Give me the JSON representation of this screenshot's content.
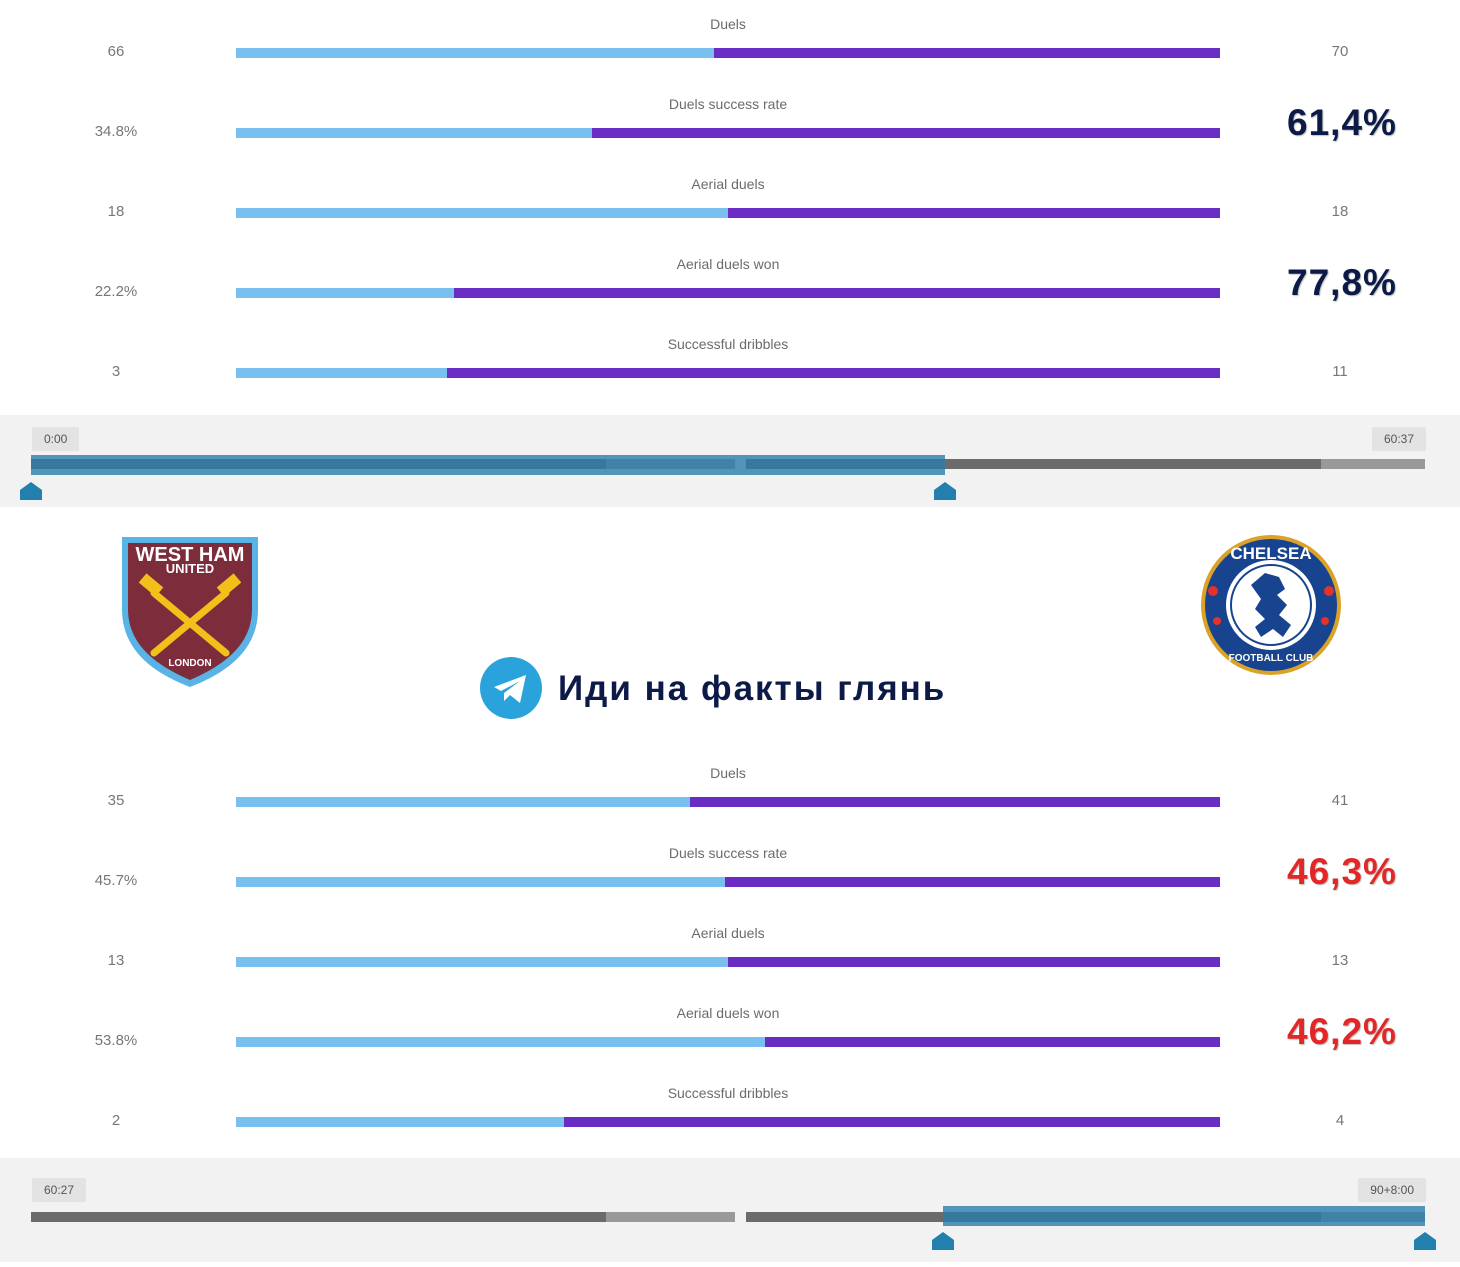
{
  "colors": {
    "home_bar": "#79c0ef",
    "away_bar": "#6a2dc4",
    "highlight_good": "#0c1a47",
    "highlight_bad": "#e32626",
    "timeline_selection": "#2b7daa"
  },
  "top_stats": [
    {
      "label": "Duels",
      "home": "66",
      "away": "70",
      "home_share": 0.486
    },
    {
      "label": "Duels success rate",
      "home": "34.8%",
      "away": "61,4%",
      "home_share": 0.362
    },
    {
      "label": "Aerial duels",
      "home": "18",
      "away": "18",
      "home_share": 0.5
    },
    {
      "label": "Aerial duels won",
      "home": "22.2%",
      "away": "77,8%",
      "home_share": 0.222
    },
    {
      "label": "Successful dribbles",
      "home": "3",
      "away": "11",
      "home_share": 0.214
    }
  ],
  "top_timeline": {
    "start_label": "0:00",
    "end_label": "60:37",
    "selection_start": 0.0,
    "selection_end": 0.656
  },
  "teams": {
    "home": {
      "name": "West Ham United",
      "crest_text_top": "WEST HAM",
      "crest_text_mid": "UNITED",
      "crest_text_bottom": "LONDON",
      "icon": "west-ham-crest"
    },
    "away": {
      "name": "Chelsea Football Club",
      "crest_text_top": "CHELSEA",
      "crest_text_bottom": "FOOTBALL CLUB",
      "icon": "chelsea-crest"
    }
  },
  "promo": {
    "icon": "telegram-icon",
    "text": "Иди на факты глянь"
  },
  "bottom_stats": [
    {
      "label": "Duels",
      "home": "35",
      "away": "41",
      "home_share": 0.461
    },
    {
      "label": "Duels success rate",
      "home": "45.7%",
      "away": "46,3%",
      "home_share": 0.497
    },
    {
      "label": "Aerial duels",
      "home": "13",
      "away": "13",
      "home_share": 0.5
    },
    {
      "label": "Aerial duels won",
      "home": "53.8%",
      "away": "46,2%",
      "home_share": 0.538
    },
    {
      "label": "Successful dribbles",
      "home": "2",
      "away": "4",
      "home_share": 0.333
    }
  ],
  "bottom_timeline": {
    "start_label": "60:27",
    "end_label": "90+8:00",
    "selection_start": 0.654,
    "selection_end": 1.0
  }
}
